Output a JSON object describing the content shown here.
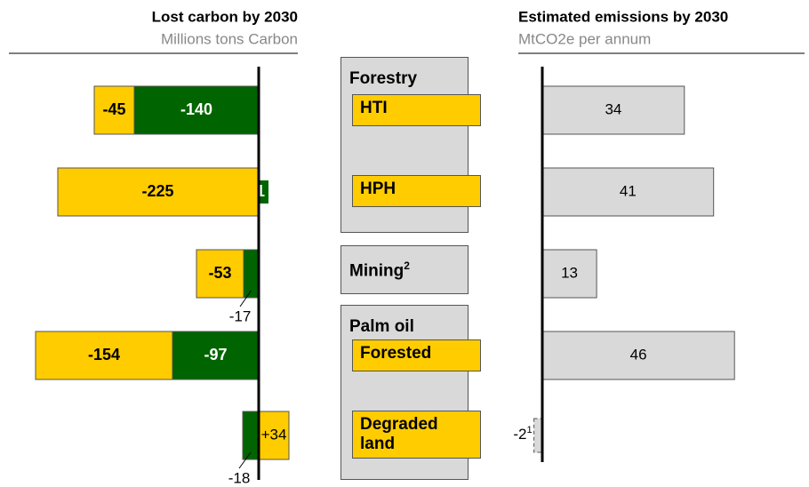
{
  "chart_data": [
    {
      "type": "bar",
      "orientation": "horizontal",
      "stacked": true,
      "title": "Lost carbon by 2030",
      "subtitle": "Millions tons Carbon",
      "category_groups": [
        {
          "title": "Forestry",
          "items": [
            "HTI",
            "HPH"
          ]
        },
        {
          "title": "Mining",
          "footnote": "2",
          "items": []
        },
        {
          "title": "Palm oil",
          "items": [
            "Forested",
            "Degraded land"
          ]
        }
      ],
      "series": [
        {
          "color": "#006400",
          "values": [
            -140,
            -1,
            -17,
            -97,
            -18
          ]
        },
        {
          "color": "#ffcc00",
          "values": [
            -45,
            -225,
            -53,
            -154,
            34
          ],
          "value_labels": [
            "-45",
            "-225",
            "-53",
            "-154",
            "+34"
          ]
        }
      ]
    },
    {
      "type": "bar",
      "orientation": "horizontal",
      "title": "Estimated emissions by 2030",
      "subtitle": "MtCO2e per annum",
      "color": "#d9d9d9",
      "values": [
        34,
        41,
        13,
        46,
        -2
      ],
      "footnotes": [
        null,
        null,
        null,
        null,
        "1"
      ]
    }
  ]
}
